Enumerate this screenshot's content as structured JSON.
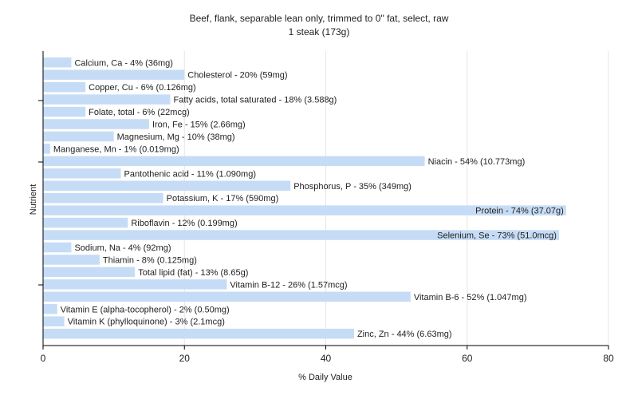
{
  "chart_data": {
    "type": "bar",
    "orientation": "horizontal",
    "title": "Beef, flank, separable lean only, trimmed to 0\" fat, select, raw",
    "subtitle": "1 steak (173g)",
    "xlabel": "% Daily Value",
    "ylabel": "Nutrient",
    "xlim": [
      0,
      80
    ],
    "xticks": [
      0,
      20,
      40,
      60,
      80
    ],
    "grid": true,
    "bar_color": "#c6dcf6",
    "categories": [
      "Calcium, Ca",
      "Cholesterol",
      "Copper, Cu",
      "Fatty acids, total saturated",
      "Folate, total",
      "Iron, Fe",
      "Magnesium, Mg",
      "Manganese, Mn",
      "Niacin",
      "Pantothenic acid",
      "Phosphorus, P",
      "Potassium, K",
      "Protein",
      "Riboflavin",
      "Selenium, Se",
      "Sodium, Na",
      "Thiamin",
      "Total lipid (fat)",
      "Vitamin B-12",
      "Vitamin B-6",
      "Vitamin E (alpha-tocopherol)",
      "Vitamin K (phylloquinone)",
      "Zinc, Zn"
    ],
    "values": [
      4,
      20,
      6,
      18,
      6,
      15,
      10,
      1,
      54,
      11,
      35,
      17,
      74,
      12,
      73,
      4,
      8,
      13,
      26,
      52,
      2,
      3,
      44
    ],
    "labels": [
      "Calcium, Ca - 4% (36mg)",
      "Cholesterol - 20% (59mg)",
      "Copper, Cu - 6% (0.126mg)",
      "Fatty acids, total saturated - 18% (3.588g)",
      "Folate, total - 6% (22mcg)",
      "Iron, Fe - 15% (2.66mg)",
      "Magnesium, Mg - 10% (38mg)",
      "Manganese, Mn - 1% (0.019mg)",
      "Niacin - 54% (10.773mg)",
      "Pantothenic acid - 11% (1.090mg)",
      "Phosphorus, P - 35% (349mg)",
      "Potassium, K - 17% (590mg)",
      "Protein - 74% (37.07g)",
      "Riboflavin - 12% (0.199mg)",
      "Selenium, Se - 73% (51.0mcg)",
      "Sodium, Na - 4% (92mg)",
      "Thiamin - 8% (0.125mg)",
      "Total lipid (fat) - 13% (8.65g)",
      "Vitamin B-12 - 26% (1.57mcg)",
      "Vitamin B-6 - 52% (1.047mg)",
      "Vitamin E (alpha-tocopherol) - 2% (0.50mg)",
      "Vitamin K (phylloquinone) - 3% (2.1mcg)",
      "Zinc, Zn - 44% (6.63mg)"
    ]
  }
}
